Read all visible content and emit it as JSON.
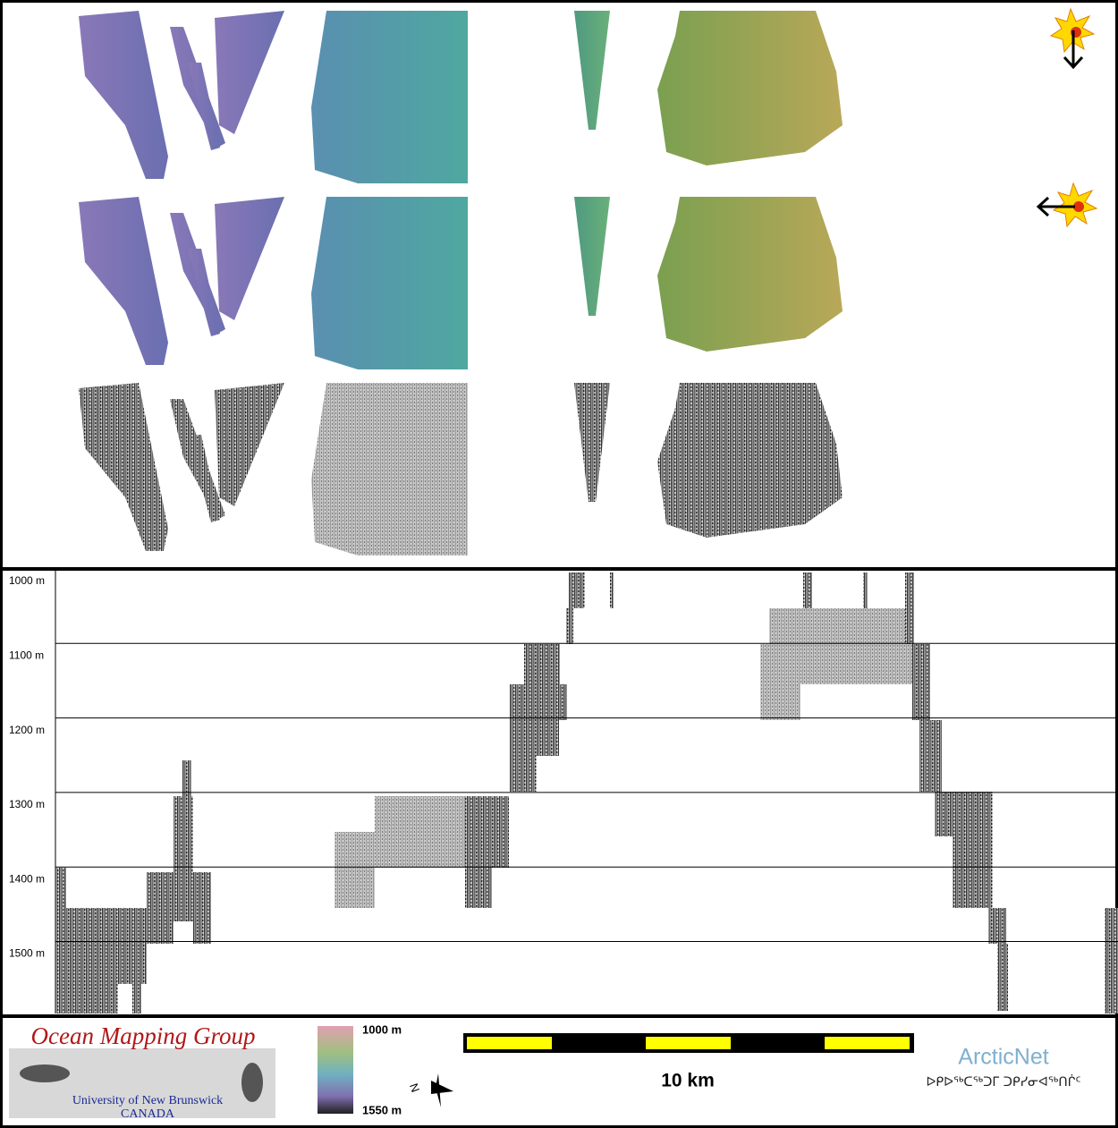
{
  "profile": {
    "depth_labels": [
      "1000 m",
      "1100 m",
      "1200 m",
      "1300 m",
      "1400 m",
      "1500 m"
    ]
  },
  "legend": {
    "colorbar": {
      "top_label": "1000 m",
      "bottom_label": "1550 m"
    },
    "scale_bar": {
      "label": "10 km"
    },
    "compass": {
      "label": "N"
    },
    "logos": {
      "omg": {
        "title": "Ocean Mapping Group",
        "line1": "University of New Brunswick",
        "line2": "CANADA"
      },
      "arcticnet": {
        "title": "ArcticNet",
        "subtitle": "ᐅᑭᐅᖅᑕᖅᑐᒥ ᑐᑭᓯᓂᐊᖅᑎᒌᑦ"
      }
    }
  }
}
